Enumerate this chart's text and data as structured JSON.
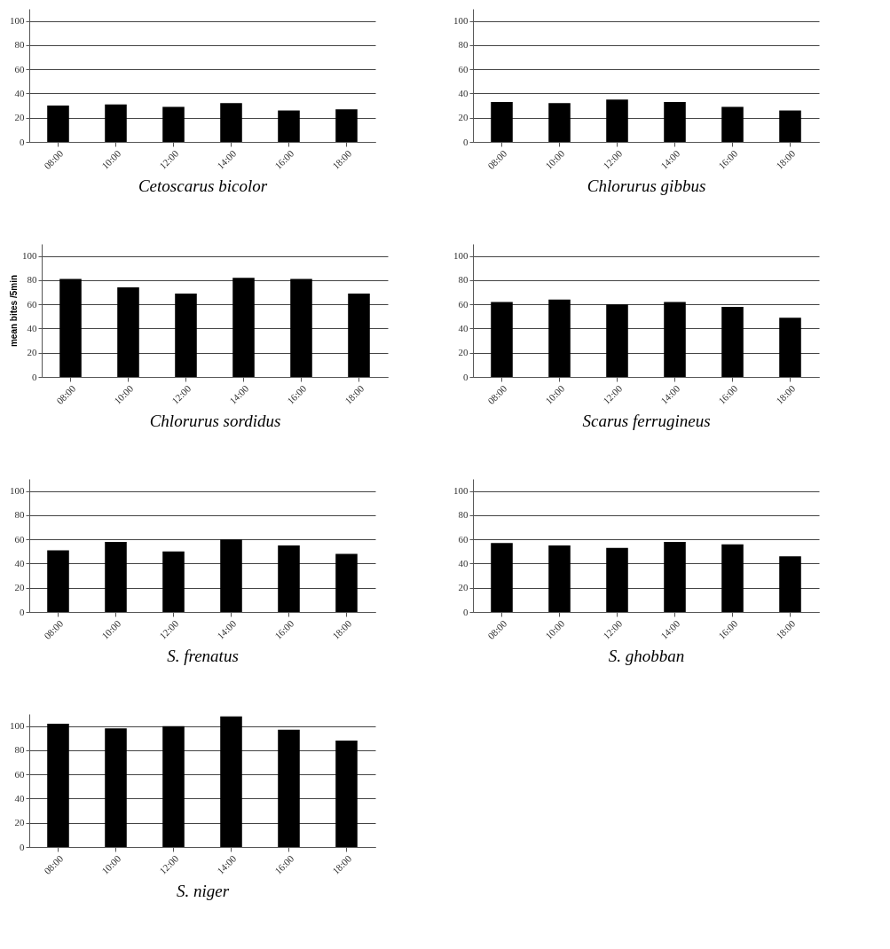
{
  "chart_data": [
    {
      "type": "bar",
      "xlabel": "Cetoscarus bicolor",
      "categories": [
        "08:00",
        "10:00",
        "12:00",
        "14:00",
        "16:00",
        "18:00"
      ],
      "values": [
        30,
        31,
        29,
        32,
        26,
        27
      ],
      "color": "#000000",
      "ylim": [
        0,
        110
      ],
      "yticks": [
        0,
        20,
        40,
        60,
        80,
        100
      ],
      "grid": "y"
    },
    {
      "type": "bar",
      "xlabel": "Chlorurus gibbus",
      "categories": [
        "08:00",
        "10:00",
        "12:00",
        "14:00",
        "16:00",
        "18:00"
      ],
      "values": [
        33,
        32,
        35,
        33,
        29,
        26
      ],
      "color": "#000000",
      "ylim": [
        0,
        110
      ],
      "yticks": [
        0,
        20,
        40,
        60,
        80,
        100
      ],
      "grid": "y"
    },
    {
      "type": "bar",
      "xlabel": "Chlorurus sordidus",
      "ylabel": "mean bites /5min",
      "categories": [
        "08:00",
        "10:00",
        "12:00",
        "14:00",
        "16:00",
        "18:00"
      ],
      "values": [
        81,
        74,
        69,
        82,
        81,
        69
      ],
      "color": "#000000",
      "ylim": [
        0,
        110
      ],
      "yticks": [
        0,
        20,
        40,
        60,
        80,
        100
      ],
      "grid": "y"
    },
    {
      "type": "bar",
      "xlabel": "Scarus ferrugineus",
      "categories": [
        "08:00",
        "10:00",
        "12:00",
        "14:00",
        "16:00",
        "18:00"
      ],
      "values": [
        62,
        64,
        60,
        62,
        58,
        49
      ],
      "color": "#000000",
      "ylim": [
        0,
        110
      ],
      "yticks": [
        0,
        20,
        40,
        60,
        80,
        100
      ],
      "grid": "y"
    },
    {
      "type": "bar",
      "xlabel": "S. frenatus",
      "categories": [
        "08:00",
        "10:00",
        "12:00",
        "14:00",
        "16:00",
        "18:00"
      ],
      "values": [
        51,
        58,
        50,
        60,
        55,
        48
      ],
      "color": "#000000",
      "ylim": [
        0,
        110
      ],
      "yticks": [
        0,
        20,
        40,
        60,
        80,
        100
      ],
      "grid": "y"
    },
    {
      "type": "bar",
      "xlabel": "S. ghobban",
      "categories": [
        "08:00",
        "10:00",
        "12:00",
        "14:00",
        "16:00",
        "18:00"
      ],
      "values": [
        57,
        55,
        53,
        58,
        56,
        46
      ],
      "color": "#000000",
      "ylim": [
        0,
        110
      ],
      "yticks": [
        0,
        20,
        40,
        60,
        80,
        100
      ],
      "grid": "y"
    },
    {
      "type": "bar",
      "xlabel": "S. niger",
      "categories": [
        "08:00",
        "10:00",
        "12:00",
        "14:00",
        "16:00",
        "18:00"
      ],
      "values": [
        102,
        98,
        100,
        108,
        97,
        88
      ],
      "color": "#000000",
      "ylim": [
        0,
        110
      ],
      "yticks": [
        0,
        20,
        40,
        60,
        80,
        100
      ],
      "grid": "y"
    }
  ]
}
